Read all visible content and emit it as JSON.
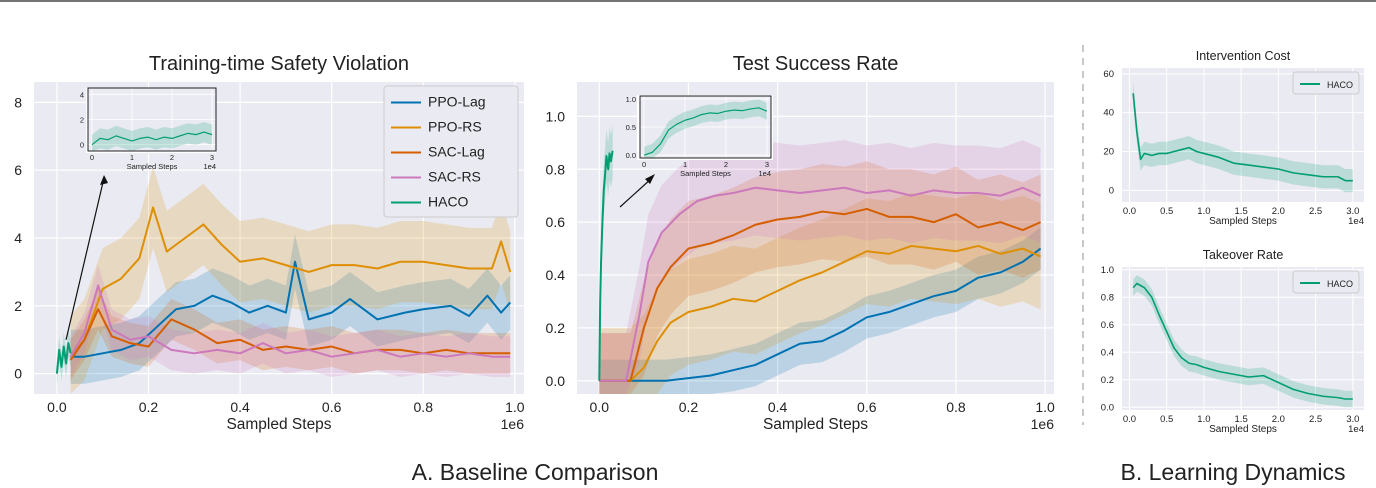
{
  "captions": {
    "left": "A. Baseline Comparison",
    "right": "B. Learning Dynamics"
  },
  "colors": {
    "PPO-Lag": "#0072b2",
    "PPO-RS": "#de8f05",
    "SAC-Lag": "#d55e00",
    "SAC-RS": "#cc78bc",
    "HACO": "#029e73"
  },
  "chart_data": [
    {
      "type": "line",
      "title": "Training-time Safety Violation",
      "xlabel": "Sampled Steps",
      "x_scale_label": "1e6",
      "ylabel": "",
      "xlim": [
        -0.05,
        1.02
      ],
      "ylim": [
        -0.6,
        8.6
      ],
      "xticks": [
        "0.0",
        "0.2",
        "0.4",
        "0.6",
        "0.8",
        "1.0"
      ],
      "yticks": [
        "0",
        "2",
        "4",
        "6",
        "8"
      ],
      "legend": [
        "PPO-Lag",
        "PPO-RS",
        "SAC-Lag",
        "SAC-RS",
        "HACO"
      ],
      "legend_position": "top-right",
      "series": [
        {
          "name": "PPO-Lag",
          "x": [
            0.03,
            0.06,
            0.1,
            0.14,
            0.18,
            0.22,
            0.26,
            0.3,
            0.34,
            0.38,
            0.42,
            0.46,
            0.5,
            0.52,
            0.55,
            0.6,
            0.64,
            0.7,
            0.76,
            0.8,
            0.86,
            0.9,
            0.94,
            0.97,
            0.99
          ],
          "y": [
            0.5,
            0.5,
            0.6,
            0.7,
            0.9,
            1.4,
            1.9,
            2.0,
            2.3,
            2.1,
            1.8,
            2.0,
            1.8,
            3.3,
            1.6,
            1.8,
            2.2,
            1.6,
            1.8,
            1.9,
            2.0,
            1.7,
            2.3,
            1.8,
            2.1
          ],
          "band": 0.8
        },
        {
          "name": "PPO-RS",
          "x": [
            0.03,
            0.06,
            0.1,
            0.14,
            0.18,
            0.21,
            0.24,
            0.28,
            0.32,
            0.36,
            0.4,
            0.45,
            0.5,
            0.55,
            0.6,
            0.65,
            0.7,
            0.75,
            0.8,
            0.85,
            0.9,
            0.95,
            0.97,
            0.99
          ],
          "y": [
            0.5,
            1.0,
            2.5,
            2.8,
            3.4,
            4.9,
            3.6,
            4.0,
            4.4,
            3.8,
            3.3,
            3.4,
            3.2,
            3.0,
            3.2,
            3.2,
            3.1,
            3.3,
            3.3,
            3.2,
            3.1,
            3.1,
            3.9,
            3.0
          ],
          "band": 1.2
        },
        {
          "name": "SAC-Lag",
          "x": [
            0.03,
            0.06,
            0.09,
            0.12,
            0.16,
            0.2,
            0.25,
            0.3,
            0.35,
            0.4,
            0.45,
            0.5,
            0.55,
            0.6,
            0.65,
            0.7,
            0.75,
            0.8,
            0.85,
            0.9,
            0.95,
            0.99
          ],
          "y": [
            0.4,
            1.0,
            1.9,
            1.1,
            0.9,
            0.8,
            1.6,
            1.3,
            0.9,
            1.0,
            0.7,
            0.8,
            0.7,
            0.8,
            0.6,
            0.7,
            0.7,
            0.6,
            0.7,
            0.6,
            0.6,
            0.6
          ],
          "band": 0.6
        },
        {
          "name": "SAC-RS",
          "x": [
            0.03,
            0.06,
            0.09,
            0.12,
            0.16,
            0.2,
            0.25,
            0.3,
            0.35,
            0.4,
            0.45,
            0.5,
            0.55,
            0.6,
            0.65,
            0.7,
            0.75,
            0.8,
            0.85,
            0.9,
            0.95,
            0.99
          ],
          "y": [
            0.5,
            1.2,
            2.6,
            1.3,
            1.0,
            1.1,
            0.7,
            0.6,
            0.7,
            0.6,
            0.9,
            0.6,
            0.7,
            0.5,
            0.6,
            0.7,
            0.5,
            0.6,
            0.5,
            0.6,
            0.5,
            0.5
          ],
          "band": 0.6
        },
        {
          "name": "HACO",
          "x": [
            0.0,
            0.005,
            0.01,
            0.015,
            0.02,
            0.025,
            0.03
          ],
          "y": [
            0.0,
            0.7,
            0.2,
            0.8,
            0.3,
            0.9,
            0.6
          ],
          "band": 0.4
        }
      ],
      "inset": {
        "xlim": [
          -0.1,
          3.1
        ],
        "ylim": [
          -0.5,
          4.5
        ],
        "xticks": [
          "0",
          "1",
          "2",
          "3"
        ],
        "yticks": [
          "0",
          "2",
          "4"
        ],
        "xlabel": "Sampled Steps",
        "x_scale_label": "1e4",
        "series": {
          "name": "HACO",
          "x": [
            0.0,
            0.2,
            0.4,
            0.6,
            0.8,
            1.0,
            1.2,
            1.4,
            1.6,
            1.8,
            2.0,
            2.2,
            2.4,
            2.6,
            2.8,
            3.0
          ],
          "y": [
            0.0,
            0.5,
            0.4,
            0.7,
            0.5,
            0.3,
            0.5,
            0.6,
            0.4,
            0.6,
            0.5,
            0.7,
            0.9,
            0.8,
            1.0,
            0.8
          ],
          "band": 0.8
        }
      }
    },
    {
      "type": "line",
      "title": "Test Success Rate",
      "xlabel": "Sampled Steps",
      "x_scale_label": "1e6",
      "ylabel": "",
      "xlim": [
        -0.05,
        1.02
      ],
      "ylim": [
        -0.05,
        1.13
      ],
      "xticks": [
        "0.0",
        "0.2",
        "0.4",
        "0.6",
        "0.8",
        "1.0"
      ],
      "yticks": [
        "0.0",
        "0.2",
        "0.4",
        "0.6",
        "0.8",
        "1.0"
      ],
      "series": [
        {
          "name": "PPO-Lag",
          "x": [
            0.0,
            0.15,
            0.2,
            0.25,
            0.3,
            0.35,
            0.4,
            0.45,
            0.5,
            0.55,
            0.6,
            0.65,
            0.7,
            0.75,
            0.8,
            0.85,
            0.9,
            0.95,
            0.99
          ],
          "y": [
            0.0,
            0.0,
            0.01,
            0.02,
            0.04,
            0.06,
            0.1,
            0.14,
            0.15,
            0.19,
            0.24,
            0.26,
            0.29,
            0.32,
            0.34,
            0.39,
            0.41,
            0.45,
            0.5
          ],
          "band": 0.08
        },
        {
          "name": "PPO-RS",
          "x": [
            0.0,
            0.07,
            0.1,
            0.13,
            0.16,
            0.2,
            0.25,
            0.3,
            0.35,
            0.4,
            0.45,
            0.5,
            0.55,
            0.6,
            0.65,
            0.7,
            0.75,
            0.8,
            0.85,
            0.9,
            0.95,
            0.99
          ],
          "y": [
            0.0,
            0.0,
            0.05,
            0.15,
            0.22,
            0.26,
            0.28,
            0.31,
            0.3,
            0.34,
            0.38,
            0.41,
            0.45,
            0.49,
            0.48,
            0.51,
            0.5,
            0.49,
            0.51,
            0.48,
            0.5,
            0.47
          ],
          "band": 0.2
        },
        {
          "name": "SAC-Lag",
          "x": [
            0.0,
            0.07,
            0.1,
            0.13,
            0.16,
            0.2,
            0.25,
            0.3,
            0.35,
            0.4,
            0.45,
            0.5,
            0.55,
            0.6,
            0.65,
            0.7,
            0.75,
            0.8,
            0.85,
            0.9,
            0.95,
            0.99
          ],
          "y": [
            0.0,
            0.0,
            0.2,
            0.35,
            0.43,
            0.5,
            0.52,
            0.55,
            0.59,
            0.61,
            0.62,
            0.64,
            0.63,
            0.65,
            0.62,
            0.62,
            0.6,
            0.63,
            0.58,
            0.6,
            0.57,
            0.6
          ],
          "band": 0.18
        },
        {
          "name": "SAC-RS",
          "x": [
            0.0,
            0.06,
            0.09,
            0.11,
            0.14,
            0.18,
            0.22,
            0.26,
            0.3,
            0.35,
            0.4,
            0.45,
            0.5,
            0.55,
            0.6,
            0.65,
            0.7,
            0.75,
            0.8,
            0.85,
            0.9,
            0.95,
            0.99
          ],
          "y": [
            0.0,
            0.0,
            0.25,
            0.45,
            0.56,
            0.63,
            0.68,
            0.7,
            0.71,
            0.73,
            0.72,
            0.71,
            0.72,
            0.73,
            0.71,
            0.72,
            0.7,
            0.72,
            0.71,
            0.71,
            0.7,
            0.73,
            0.7
          ],
          "band": 0.18
        },
        {
          "name": "HACO",
          "x": [
            0.0,
            0.002,
            0.004,
            0.007,
            0.01,
            0.013,
            0.016,
            0.02,
            0.023,
            0.026,
            0.03
          ],
          "y": [
            0.0,
            0.3,
            0.45,
            0.6,
            0.72,
            0.78,
            0.85,
            0.8,
            0.86,
            0.83,
            0.87
          ],
          "band": 0.1
        }
      ],
      "inset": {
        "xlim": [
          -0.1,
          3.1
        ],
        "ylim": [
          -0.05,
          1.05
        ],
        "xticks": [
          "0",
          "1",
          "2",
          "3"
        ],
        "yticks": [
          "0.0",
          "0.5",
          "1.0"
        ],
        "xlabel": "Sampled Steps",
        "x_scale_label": "1e4",
        "series": {
          "name": "HACO",
          "x": [
            0.0,
            0.2,
            0.4,
            0.6,
            0.8,
            1.0,
            1.2,
            1.4,
            1.6,
            1.8,
            2.0,
            2.2,
            2.4,
            2.6,
            2.8,
            3.0
          ],
          "y": [
            0.0,
            0.05,
            0.2,
            0.45,
            0.55,
            0.62,
            0.66,
            0.72,
            0.75,
            0.74,
            0.78,
            0.8,
            0.79,
            0.82,
            0.84,
            0.78
          ],
          "band": 0.15
        }
      }
    },
    {
      "type": "line",
      "title": "Intervention Cost",
      "xlabel": "Sampled Steps",
      "x_scale_label": "1e4",
      "xlim": [
        -0.1,
        3.15
      ],
      "ylim": [
        -6,
        63
      ],
      "xticks": [
        "0.0",
        "0.5",
        "1.0",
        "1.5",
        "2.0",
        "2.5",
        "3.0"
      ],
      "yticks": [
        "0",
        "20",
        "40",
        "60"
      ],
      "legend": [
        "HACO"
      ],
      "legend_position": "top-right",
      "series": [
        {
          "name": "HACO",
          "x": [
            0.05,
            0.1,
            0.15,
            0.2,
            0.3,
            0.4,
            0.5,
            0.6,
            0.7,
            0.8,
            0.9,
            1.0,
            1.2,
            1.4,
            1.6,
            1.8,
            2.0,
            2.2,
            2.4,
            2.6,
            2.8,
            2.9,
            3.0
          ],
          "y": [
            50,
            30,
            16,
            19,
            18,
            19,
            19,
            20,
            21,
            22,
            20,
            19,
            17,
            14,
            13,
            12,
            11,
            9,
            8,
            7,
            7,
            5,
            5
          ],
          "band": 6
        }
      ]
    },
    {
      "type": "line",
      "title": "Takeover Rate",
      "xlabel": "Sampled Steps",
      "x_scale_label": "1e4",
      "xlim": [
        -0.1,
        3.15
      ],
      "ylim": [
        -0.02,
        1.02
      ],
      "xticks": [
        "0.0",
        "0.5",
        "1.0",
        "1.5",
        "2.0",
        "2.5",
        "3.0"
      ],
      "yticks": [
        "0.0",
        "0.2",
        "0.4",
        "0.6",
        "0.8",
        "1.0"
      ],
      "legend": [
        "HACO"
      ],
      "legend_position": "top-right",
      "series": [
        {
          "name": "HACO",
          "x": [
            0.05,
            0.1,
            0.2,
            0.3,
            0.4,
            0.5,
            0.6,
            0.7,
            0.8,
            0.9,
            1.0,
            1.2,
            1.4,
            1.6,
            1.8,
            2.0,
            2.2,
            2.4,
            2.6,
            2.8,
            2.9,
            3.0
          ],
          "y": [
            0.87,
            0.9,
            0.87,
            0.8,
            0.67,
            0.55,
            0.43,
            0.36,
            0.32,
            0.31,
            0.29,
            0.26,
            0.24,
            0.22,
            0.23,
            0.18,
            0.13,
            0.1,
            0.08,
            0.07,
            0.06,
            0.06
          ],
          "band": 0.06
        }
      ]
    }
  ]
}
